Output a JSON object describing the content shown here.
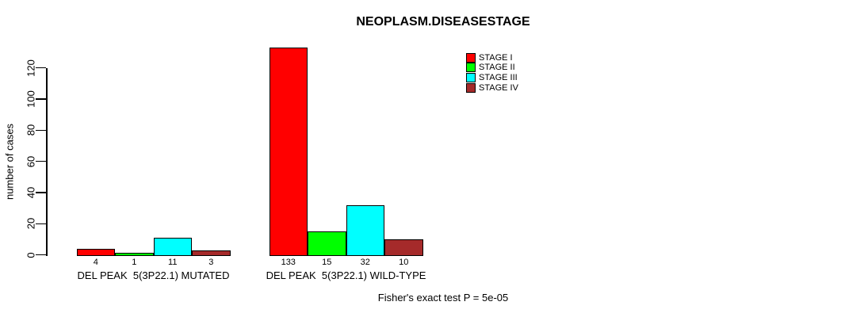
{
  "page": {
    "background": "#ffffff"
  },
  "chart_data": {
    "type": "bar",
    "title": "NEOPLASM.DISEASESTAGE",
    "ylabel": "number of cases",
    "xlabel": "",
    "ylim": [
      0,
      120
    ],
    "yticks": [
      0,
      20,
      40,
      60,
      80,
      100,
      120
    ],
    "grid": false,
    "legend_position": "top-right",
    "categories": [
      "DEL PEAK  5(3P22.1) MUTATED",
      "DEL PEAK  5(3P22.1) WILD-TYPE"
    ],
    "series": [
      {
        "name": "STAGE I",
        "color": "#FF0000",
        "values": [
          4,
          133
        ]
      },
      {
        "name": "STAGE II",
        "color": "#00FF00",
        "values": [
          1,
          15
        ]
      },
      {
        "name": "STAGE III",
        "color": "#00FFFF",
        "values": [
          11,
          32
        ]
      },
      {
        "name": "STAGE IV",
        "color": "#A52A2A",
        "values": [
          3,
          10
        ]
      }
    ],
    "bar_value_labels": [
      [
        4,
        1,
        11,
        3
      ],
      [
        133,
        15,
        32,
        10
      ]
    ],
    "footnote": "Fisher's exact test P = 5e-05"
  }
}
